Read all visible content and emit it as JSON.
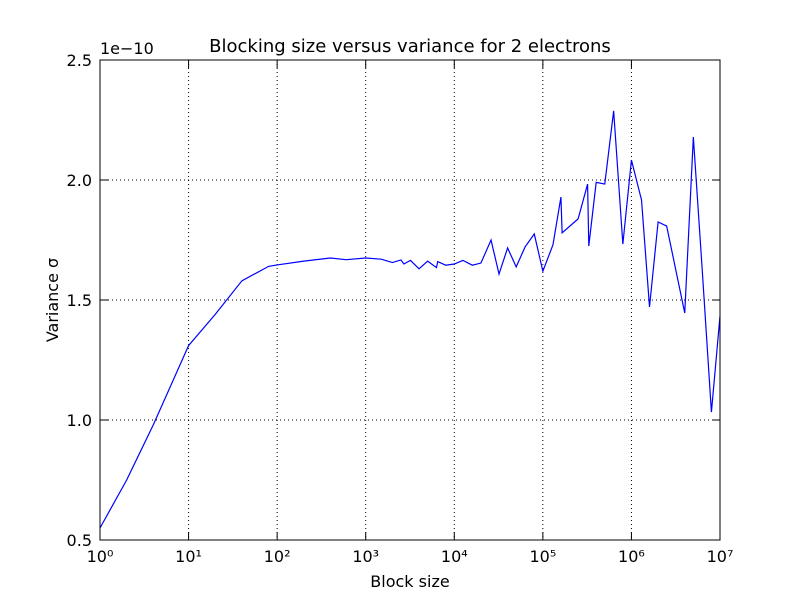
{
  "chart_data": {
    "type": "line",
    "title": "Blocking size versus variance for 2 electrons",
    "x_label": "Block size",
    "y_label": "Variance σ",
    "y_offset_label": "1e−10",
    "xscale": "log",
    "grid": true,
    "color": "#0000ff",
    "xlim": [
      1,
      10000000
    ],
    "xticks": [
      {
        "value": 1,
        "label": "10⁰"
      },
      {
        "value": 10,
        "label": "10¹"
      },
      {
        "value": 100,
        "label": "10²"
      },
      {
        "value": 1000,
        "label": "10³"
      },
      {
        "value": 10000,
        "label": "10⁴"
      },
      {
        "value": 100000,
        "label": "10⁵"
      },
      {
        "value": 1000000,
        "label": "10⁶"
      },
      {
        "value": 10000000,
        "label": "10⁷"
      }
    ],
    "ylim": [
      0.5,
      2.5
    ],
    "yticks": [
      0.5,
      {
        "value": 1,
        "label": "1.0"
      },
      1.5,
      {
        "value": 2,
        "label": "2.0"
      },
      2.5
    ],
    "x": [
      1,
      2,
      4,
      10,
      20,
      40,
      80,
      100,
      200,
      400,
      600,
      1000,
      1500,
      2000,
      2500,
      2700,
      3200,
      4000,
      5000,
      6300,
      6500,
      8000,
      10000,
      12500,
      16000,
      20000,
      26000,
      32000,
      40000,
      50000,
      63000,
      80000,
      100000,
      130000,
      160000,
      165000,
      250000,
      320000,
      330000,
      400000,
      500000,
      630000,
      800000,
      1000000,
      1300000,
      1600000,
      2000000,
      2500000,
      4000000,
      5000000,
      6300000,
      8000000,
      10000000
    ],
    "values": [
      0.55,
      0.75,
      0.98,
      1.31,
      1.44,
      1.58,
      1.64,
      1.646,
      1.662,
      1.675,
      1.668,
      1.675,
      1.67,
      1.656,
      1.667,
      1.65,
      1.665,
      1.63,
      1.662,
      1.635,
      1.66,
      1.645,
      1.65,
      1.665,
      1.645,
      1.654,
      1.75,
      1.608,
      1.717,
      1.638,
      1.721,
      1.775,
      1.62,
      1.73,
      1.929,
      1.78,
      1.838,
      1.983,
      1.725,
      1.99,
      1.983,
      2.288,
      1.733,
      2.083,
      1.917,
      1.471,
      1.825,
      1.808,
      1.446,
      2.179,
      1.625,
      1.033,
      1.433
    ]
  }
}
